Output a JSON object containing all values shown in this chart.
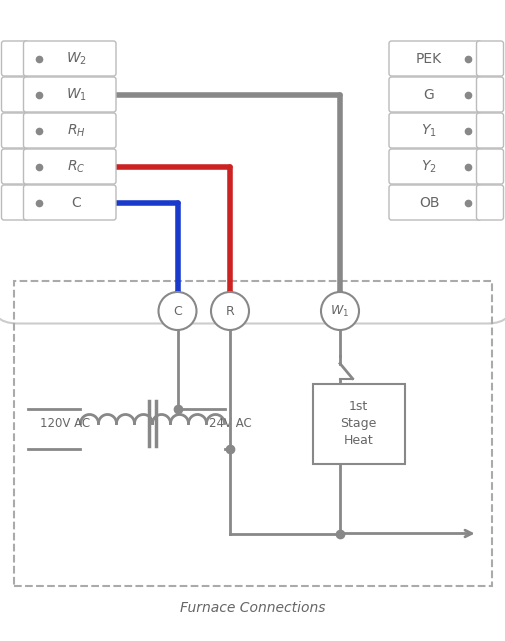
{
  "bg_color": "#ffffff",
  "gray_wire": "#888888",
  "red_wire": "#cc2222",
  "blue_wire": "#1a3acc",
  "wire_lw": 4.0,
  "thin_lw": 2.0,
  "terminal_left": [
    "W2",
    "W1",
    "RH",
    "RC",
    "C"
  ],
  "terminal_right": [
    "PEK",
    "G",
    "Y1",
    "Y2",
    "OB"
  ],
  "circle_labels": [
    "C",
    "R",
    "W1"
  ],
  "furnace_label": "Furnace Connections",
  "heat_box_label": "1st\nStage\nHeat",
  "label_120": "120V AC",
  "label_24": "24V AC",
  "dot_color": "#888888",
  "dashed_box_color": "#aaaaaa",
  "thermostat_outline_color": "#cccccc",
  "terminal_edge_color": "#bbbbbb",
  "text_color": "#666666",
  "coil_color": "#888888"
}
